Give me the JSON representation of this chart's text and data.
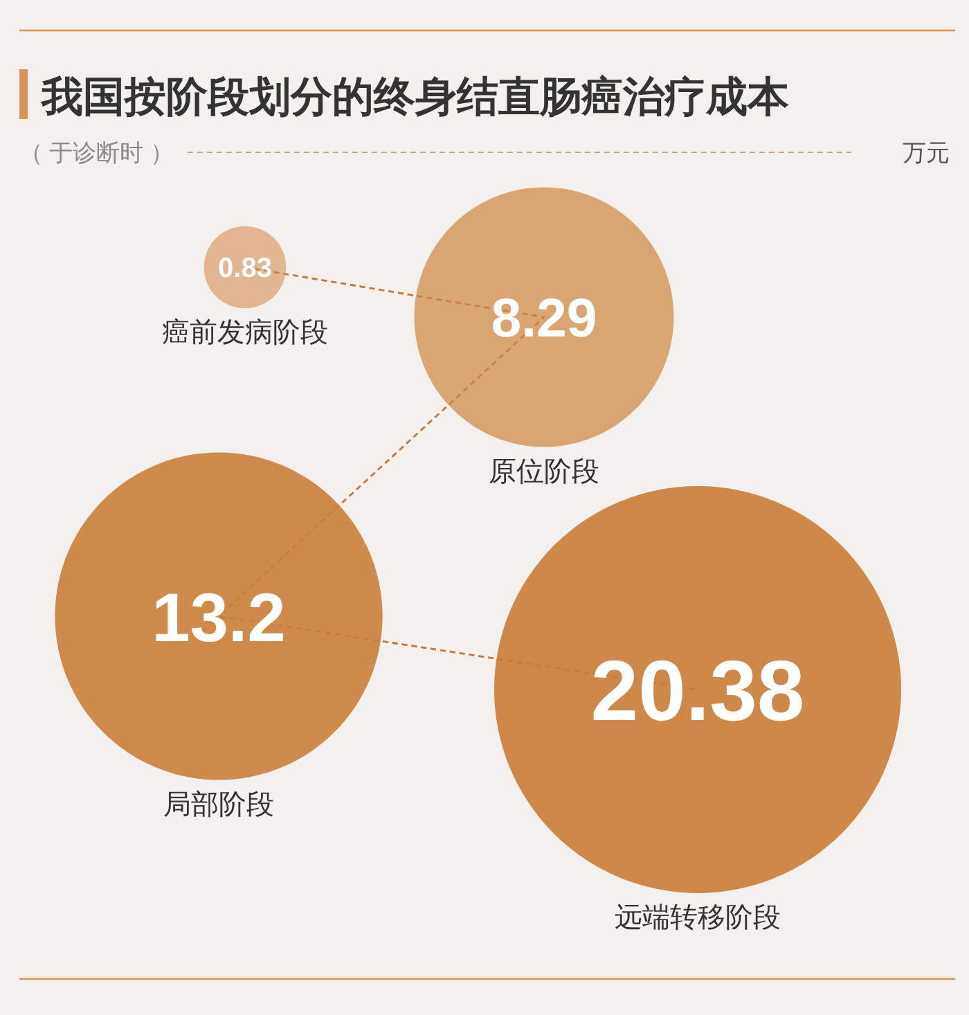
{
  "chart_data": {
    "type": "other",
    "title": "我国按阶段划分的终身结直肠癌治疗成本",
    "subtitle": "（ 于诊断时 ）",
    "annotations": [
      "万元"
    ],
    "categories": [
      "癌前发病阶段",
      "原位阶段",
      "局部阶段",
      "远端转移阶段"
    ],
    "values": [
      0.83,
      8.29,
      13.2,
      20.38
    ],
    "colors": [
      "#e2b690",
      "#d9a673",
      "#cf8b4b",
      "#cd884a"
    ],
    "data_labels": true
  }
}
